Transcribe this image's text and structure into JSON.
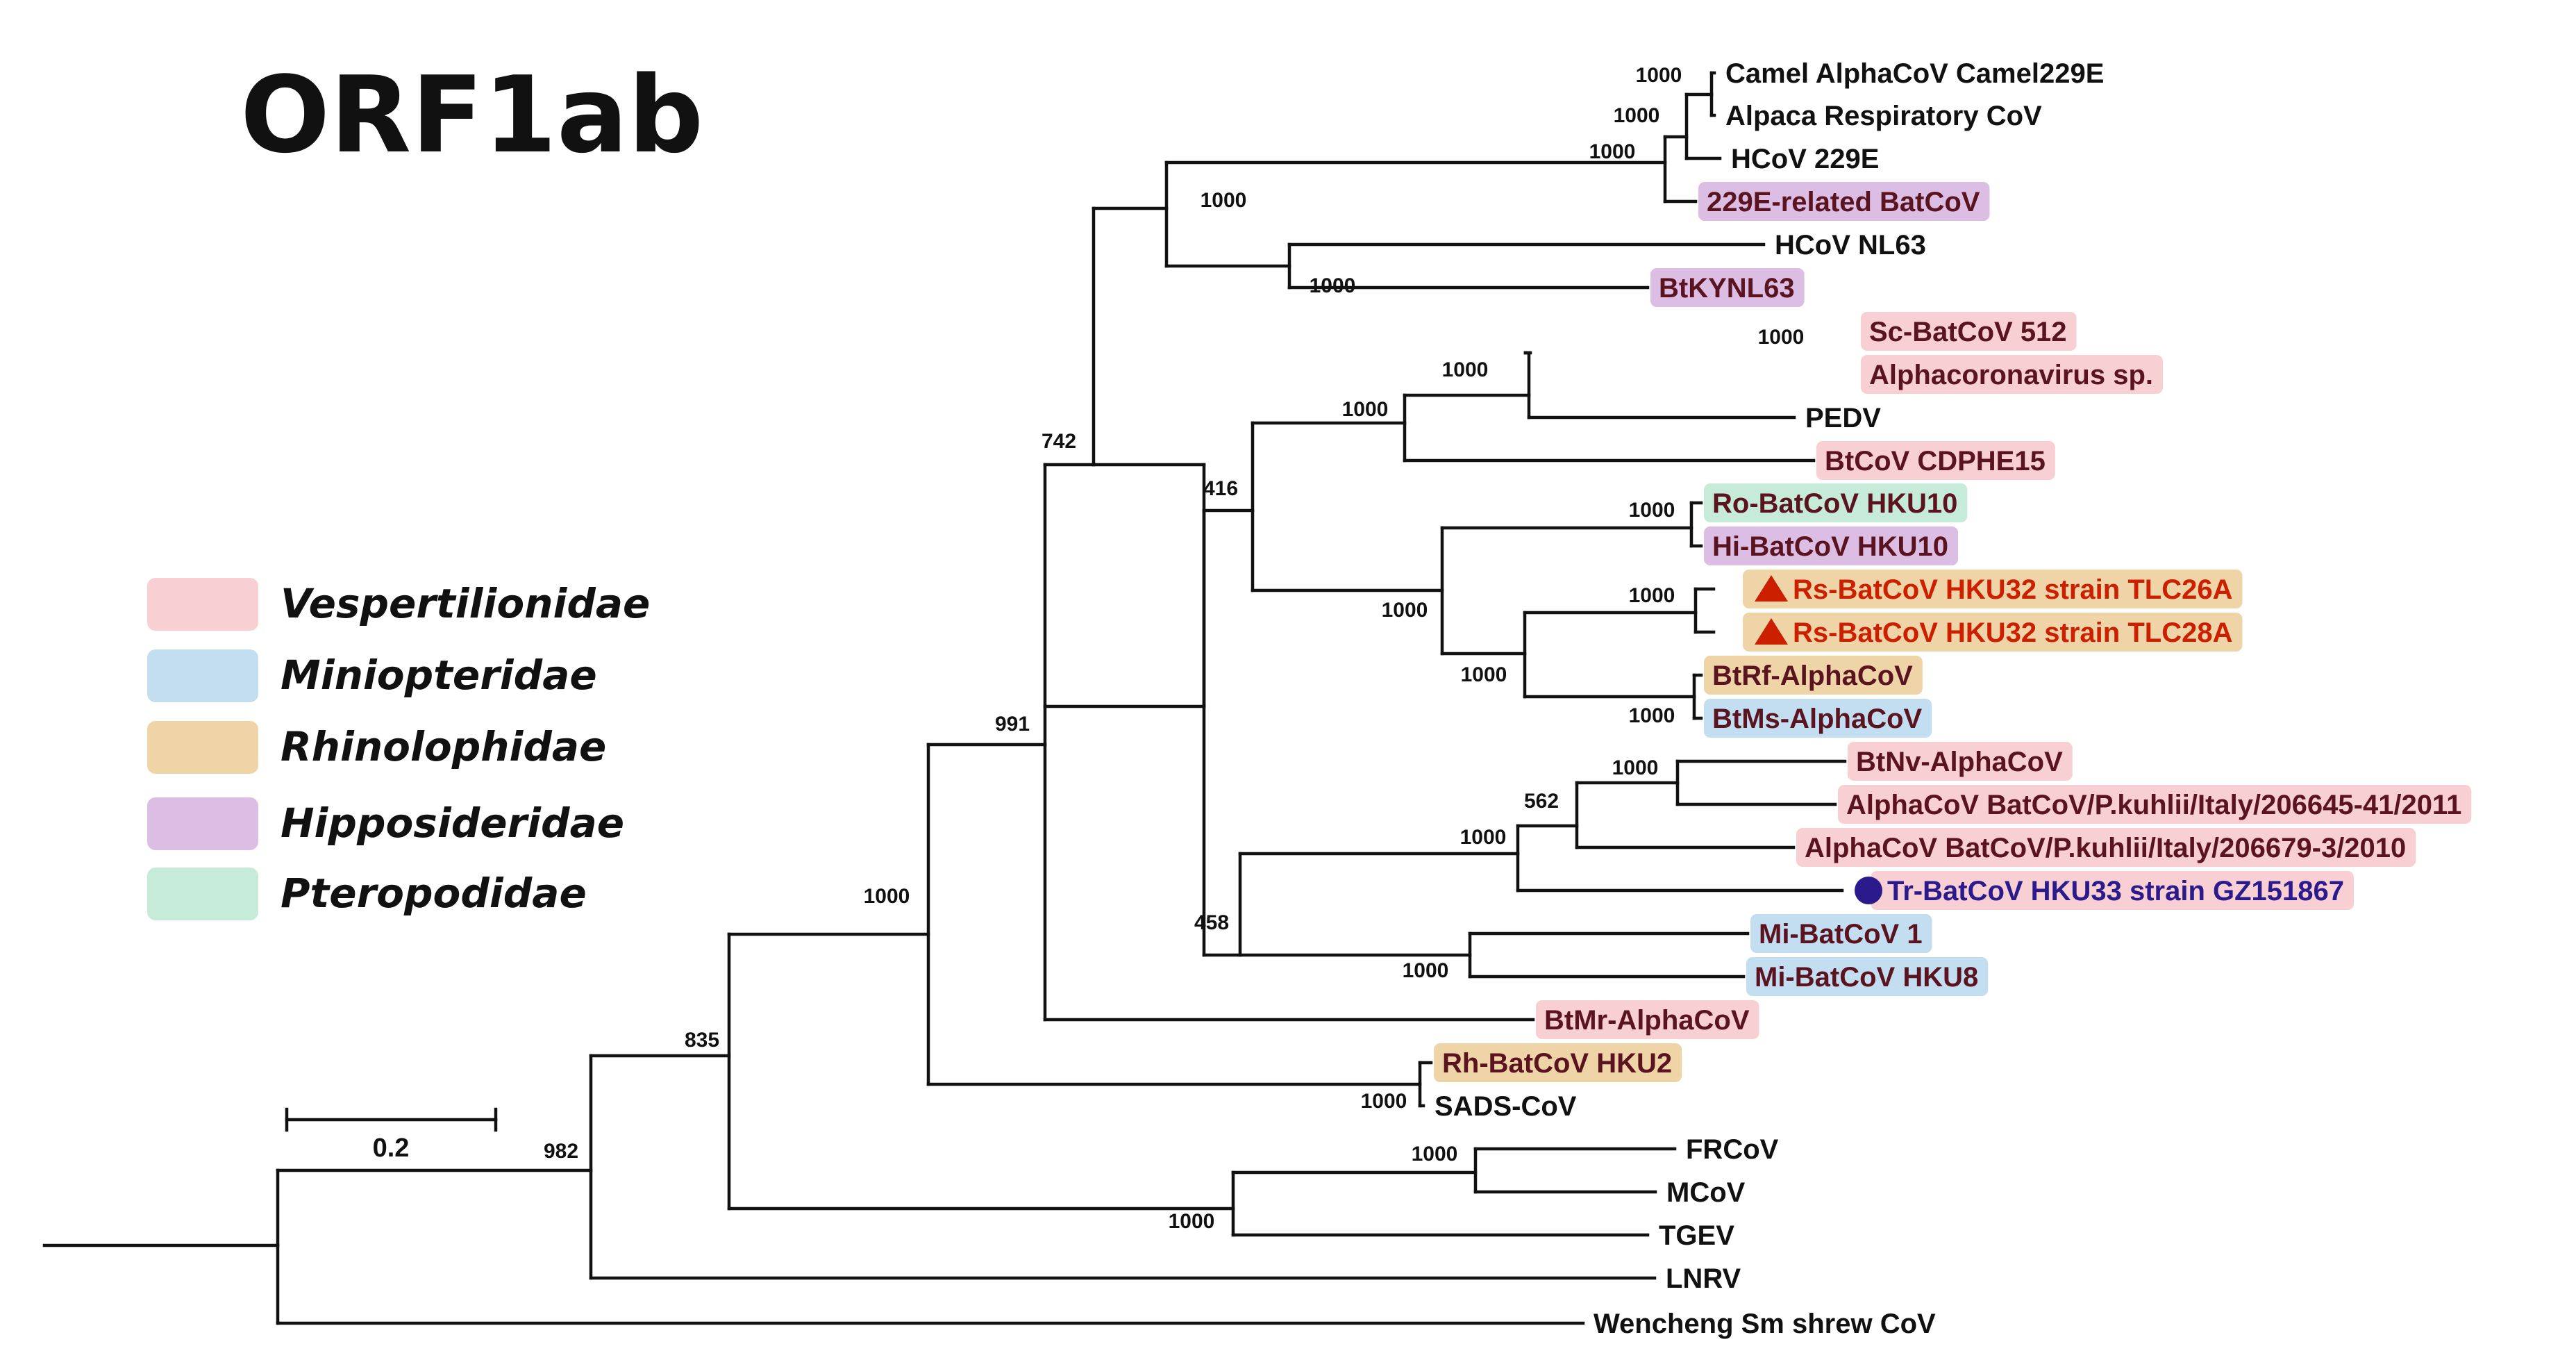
{
  "title": "ORF1ab",
  "scale_bar": {
    "label": "0.2"
  },
  "colors": {
    "Vespertilionidae": "#f8cfd2",
    "Miniopteridae": "#c4def1",
    "Rhinolophidae": "#efd4a7",
    "Hipposideridae": "#dcbde4",
    "Pteropodidae": "#c6ecd9",
    "strain_tlc": "#cc1f00",
    "strain_hku33": "#2a1a8c",
    "default_text": "#111111",
    "colored_text": "#5a1420"
  },
  "legend": [
    {
      "label": "Vespertilionidae",
      "color_key": "Vespertilionidae"
    },
    {
      "label": "Miniopteridae",
      "color_key": "Miniopteridae"
    },
    {
      "label": "Rhinolophidae",
      "color_key": "Rhinolophidae"
    },
    {
      "label": "Hipposideridae",
      "color_key": "Hipposideridae"
    },
    {
      "label": "Pteropodidae",
      "color_key": "Pteropodidae"
    }
  ],
  "taxa": [
    {
      "id": "camel229e",
      "label": "Camel AlphaCoV Camel229E",
      "family": null
    },
    {
      "id": "alpaca",
      "label": "Alpaca Respiratory CoV",
      "family": null
    },
    {
      "id": "hcov229e",
      "label": "HCoV 229E",
      "family": null
    },
    {
      "id": "bat229e",
      "label": "229E-related BatCoV",
      "family": "Hipposideridae"
    },
    {
      "id": "nl63",
      "label": "HCoV NL63",
      "family": null
    },
    {
      "id": "btkynl63",
      "label": "BtKYNL63",
      "family": "Hipposideridae"
    },
    {
      "id": "sc512",
      "label": "Sc-BatCoV 512",
      "family": "Vespertilionidae"
    },
    {
      "id": "alphasp",
      "label": "Alphacoronavirus sp.",
      "family": "Vespertilionidae"
    },
    {
      "id": "pedv",
      "label": "PEDV",
      "family": null
    },
    {
      "id": "cdphe15",
      "label": "BtCoV CDPHE15",
      "family": "Vespertilionidae"
    },
    {
      "id": "rohku10",
      "label": "Ro-BatCoV HKU10",
      "family": "Pteropodidae"
    },
    {
      "id": "hihku10",
      "label": "Hi-BatCoV HKU10",
      "family": "Hipposideridae"
    },
    {
      "id": "tlc26a",
      "label": "Rs-BatCoV HKU32 strain TLC26A",
      "family": "Rhinolophidae",
      "marker": "triangle"
    },
    {
      "id": "tlc28a",
      "label": "Rs-BatCoV HKU32 strain TLC28A",
      "family": "Rhinolophidae",
      "marker": "triangle"
    },
    {
      "id": "btrf",
      "label": "BtRf-AlphaCoV",
      "family": "Rhinolophidae"
    },
    {
      "id": "btms",
      "label": "BtMs-AlphaCoV",
      "family": "Miniopteridae"
    },
    {
      "id": "btnv",
      "label": "BtNv-AlphaCoV",
      "family": "Vespertilionidae"
    },
    {
      "id": "pk41",
      "label": "AlphaCoV BatCoV/P.kuhlii/Italy/206645-41/2011",
      "family": "Vespertilionidae"
    },
    {
      "id": "pk3",
      "label": "AlphaCoV BatCoV/P.kuhlii/Italy/206679-3/2010",
      "family": "Vespertilionidae"
    },
    {
      "id": "hku33",
      "label": "Tr-BatCoV HKU33 strain GZ151867",
      "family": "Vespertilionidae",
      "marker": "circle"
    },
    {
      "id": "mi1",
      "label": "Mi-BatCoV 1",
      "family": "Miniopteridae"
    },
    {
      "id": "mihku8",
      "label": "Mi-BatCoV HKU8",
      "family": "Miniopteridae"
    },
    {
      "id": "btmr",
      "label": "BtMr-AlphaCoV",
      "family": "Vespertilionidae"
    },
    {
      "id": "rhhku2",
      "label": "Rh-BatCoV HKU2",
      "family": "Rhinolophidae"
    },
    {
      "id": "sads",
      "label": "SADS-CoV",
      "family": null
    },
    {
      "id": "frcov",
      "label": "FRCoV",
      "family": null
    },
    {
      "id": "mcov",
      "label": "MCoV",
      "family": null
    },
    {
      "id": "tgev",
      "label": "TGEV",
      "family": null
    },
    {
      "id": "lnrv",
      "label": "LNRV",
      "family": null
    },
    {
      "id": "wencheng",
      "label": "Wencheng Sm shrew CoV",
      "family": null
    }
  ],
  "bootstrap_values": [
    {
      "id": "n_camel_alpaca",
      "value": "1000"
    },
    {
      "id": "n_camel_alpaca_hcov",
      "value": "1000"
    },
    {
      "id": "n_229e_group",
      "value": "1000"
    },
    {
      "id": "n_229e_nl63",
      "value": "1000"
    },
    {
      "id": "n_nl63",
      "value": "1000"
    },
    {
      "id": "n_sc512",
      "value": "1000"
    },
    {
      "id": "n_sc_pedv",
      "value": "1000"
    },
    {
      "id": "n_pedv_group",
      "value": "1000"
    },
    {
      "id": "n_hku10",
      "value": "1000"
    },
    {
      "id": "n_tlc",
      "value": "1000"
    },
    {
      "id": "n_btrf",
      "value": "1000"
    },
    {
      "id": "n_hku32_group",
      "value": "1000"
    },
    {
      "id": "n_rhino",
      "value": "1000"
    },
    {
      "id": "n_416",
      "value": "416"
    },
    {
      "id": "n_btnv",
      "value": "1000"
    },
    {
      "id": "n_562",
      "value": "562"
    },
    {
      "id": "n_hku33_group",
      "value": "1000"
    },
    {
      "id": "n_mi",
      "value": "1000"
    },
    {
      "id": "n_458",
      "value": "458"
    },
    {
      "id": "n_742",
      "value": "742"
    },
    {
      "id": "n_sads",
      "value": "1000"
    },
    {
      "id": "n_991",
      "value": "991"
    },
    {
      "id": "n_frcov",
      "value": "1000"
    },
    {
      "id": "n_tgev",
      "value": "1000"
    },
    {
      "id": "n_1000_root",
      "value": "1000"
    },
    {
      "id": "n_835",
      "value": "835"
    },
    {
      "id": "n_982",
      "value": "982"
    }
  ]
}
